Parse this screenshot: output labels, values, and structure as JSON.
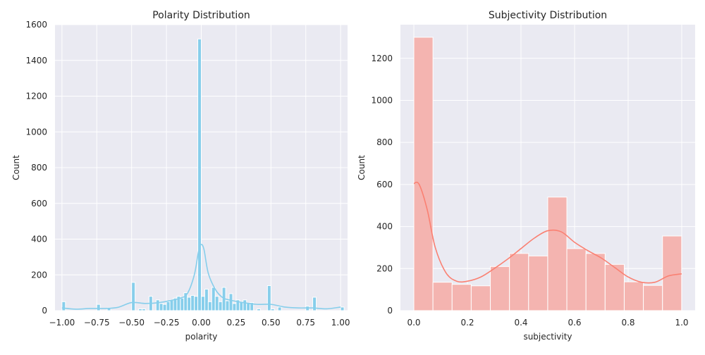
{
  "chart_data": [
    {
      "type": "bar",
      "title": "Polarity Distribution",
      "xlabel": "polarity",
      "ylabel": "Count",
      "xlim": [
        -1.05,
        1.05
      ],
      "ylim": [
        0,
        1600
      ],
      "grid": true,
      "colors": {
        "background": "#eaeaf2",
        "grid": "#ffffff",
        "bar_fill": "#87ceeb",
        "bar_edge": "#ffffff",
        "kde": "#87ceeb"
      },
      "xticks": [
        {
          "value": -1.0,
          "label": "−1.00"
        },
        {
          "value": -0.75,
          "label": "−0.75"
        },
        {
          "value": -0.5,
          "label": "−0.50"
        },
        {
          "value": -0.25,
          "label": "−0.25"
        },
        {
          "value": 0.0,
          "label": "0.00"
        },
        {
          "value": 0.25,
          "label": "0.25"
        },
        {
          "value": 0.5,
          "label": "0.50"
        },
        {
          "value": 0.75,
          "label": "0.75"
        },
        {
          "value": 1.0,
          "label": "1.00"
        }
      ],
      "yticks": [
        {
          "value": 0,
          "label": "0"
        },
        {
          "value": 200,
          "label": "200"
        },
        {
          "value": 400,
          "label": "400"
        },
        {
          "value": 600,
          "label": "600"
        },
        {
          "value": 800,
          "label": "800"
        },
        {
          "value": 1000,
          "label": "1000"
        },
        {
          "value": 1200,
          "label": "1200"
        },
        {
          "value": 1400,
          "label": "1400"
        },
        {
          "value": 1600,
          "label": "1600"
        }
      ],
      "bins": {
        "start": -1.0,
        "width": 0.025,
        "counts": [
          50,
          0,
          0,
          0,
          0,
          0,
          0,
          0,
          0,
          0,
          35,
          0,
          0,
          15,
          0,
          0,
          0,
          0,
          0,
          0,
          158,
          0,
          10,
          10,
          0,
          80,
          0,
          60,
          40,
          35,
          50,
          60,
          70,
          80,
          70,
          100,
          75,
          85,
          80,
          1520,
          80,
          120,
          50,
          130,
          80,
          50,
          130,
          55,
          95,
          40,
          60,
          50,
          60,
          40,
          45,
          0,
          10,
          0,
          0,
          140,
          10,
          0,
          20,
          0,
          0,
          0,
          0,
          0,
          0,
          0,
          25,
          0,
          75,
          0,
          0,
          0,
          0,
          0,
          0,
          0,
          20
        ]
      },
      "kde": {
        "x": [
          -1.0,
          -0.9,
          -0.8,
          -0.7,
          -0.6,
          -0.5,
          -0.4,
          -0.3,
          -0.2,
          -0.15,
          -0.1,
          -0.05,
          -0.02,
          0.0,
          0.02,
          0.05,
          0.1,
          0.15,
          0.2,
          0.3,
          0.4,
          0.5,
          0.6,
          0.7,
          0.8,
          0.9,
          1.0
        ],
        "y": [
          15,
          8,
          12,
          12,
          18,
          45,
          40,
          45,
          60,
          70,
          95,
          200,
          330,
          370,
          340,
          210,
          120,
          75,
          60,
          45,
          35,
          35,
          20,
          15,
          15,
          10,
          20
        ]
      }
    },
    {
      "type": "bar",
      "title": "Subjectivity Distribution",
      "xlabel": "subjectivity",
      "ylabel": "Count",
      "xlim": [
        -0.05,
        1.05
      ],
      "ylim": [
        0,
        1360
      ],
      "grid": true,
      "colors": {
        "background": "#eaeaf2",
        "grid": "#ffffff",
        "bar_fill": "#f4b4b0",
        "bar_edge": "#ffffff",
        "kde": "#fa8072"
      },
      "xticks": [
        {
          "value": 0.0,
          "label": "0.0"
        },
        {
          "value": 0.2,
          "label": "0.2"
        },
        {
          "value": 0.4,
          "label": "0.4"
        },
        {
          "value": 0.6,
          "label": "0.6"
        },
        {
          "value": 0.8,
          "label": "0.8"
        },
        {
          "value": 1.0,
          "label": "1.0"
        }
      ],
      "yticks": [
        {
          "value": 0,
          "label": "0"
        },
        {
          "value": 200,
          "label": "200"
        },
        {
          "value": 400,
          "label": "400"
        },
        {
          "value": 600,
          "label": "600"
        },
        {
          "value": 800,
          "label": "800"
        },
        {
          "value": 1000,
          "label": "1000"
        },
        {
          "value": 1200,
          "label": "1200"
        }
      ],
      "bins": {
        "start": 0.0,
        "width": 0.0714,
        "counts": [
          1300,
          135,
          125,
          118,
          210,
          272,
          260,
          540,
          295,
          272,
          220,
          137,
          120,
          355
        ]
      },
      "kde": {
        "x": [
          0.0,
          0.02,
          0.05,
          0.08,
          0.12,
          0.16,
          0.2,
          0.25,
          0.3,
          0.35,
          0.4,
          0.45,
          0.5,
          0.55,
          0.6,
          0.65,
          0.7,
          0.75,
          0.8,
          0.85,
          0.9,
          0.95,
          1.0
        ],
        "y": [
          605,
          600,
          480,
          300,
          180,
          140,
          140,
          160,
          200,
          245,
          295,
          345,
          380,
          375,
          325,
          285,
          250,
          205,
          160,
          135,
          135,
          165,
          175
        ]
      }
    }
  ]
}
